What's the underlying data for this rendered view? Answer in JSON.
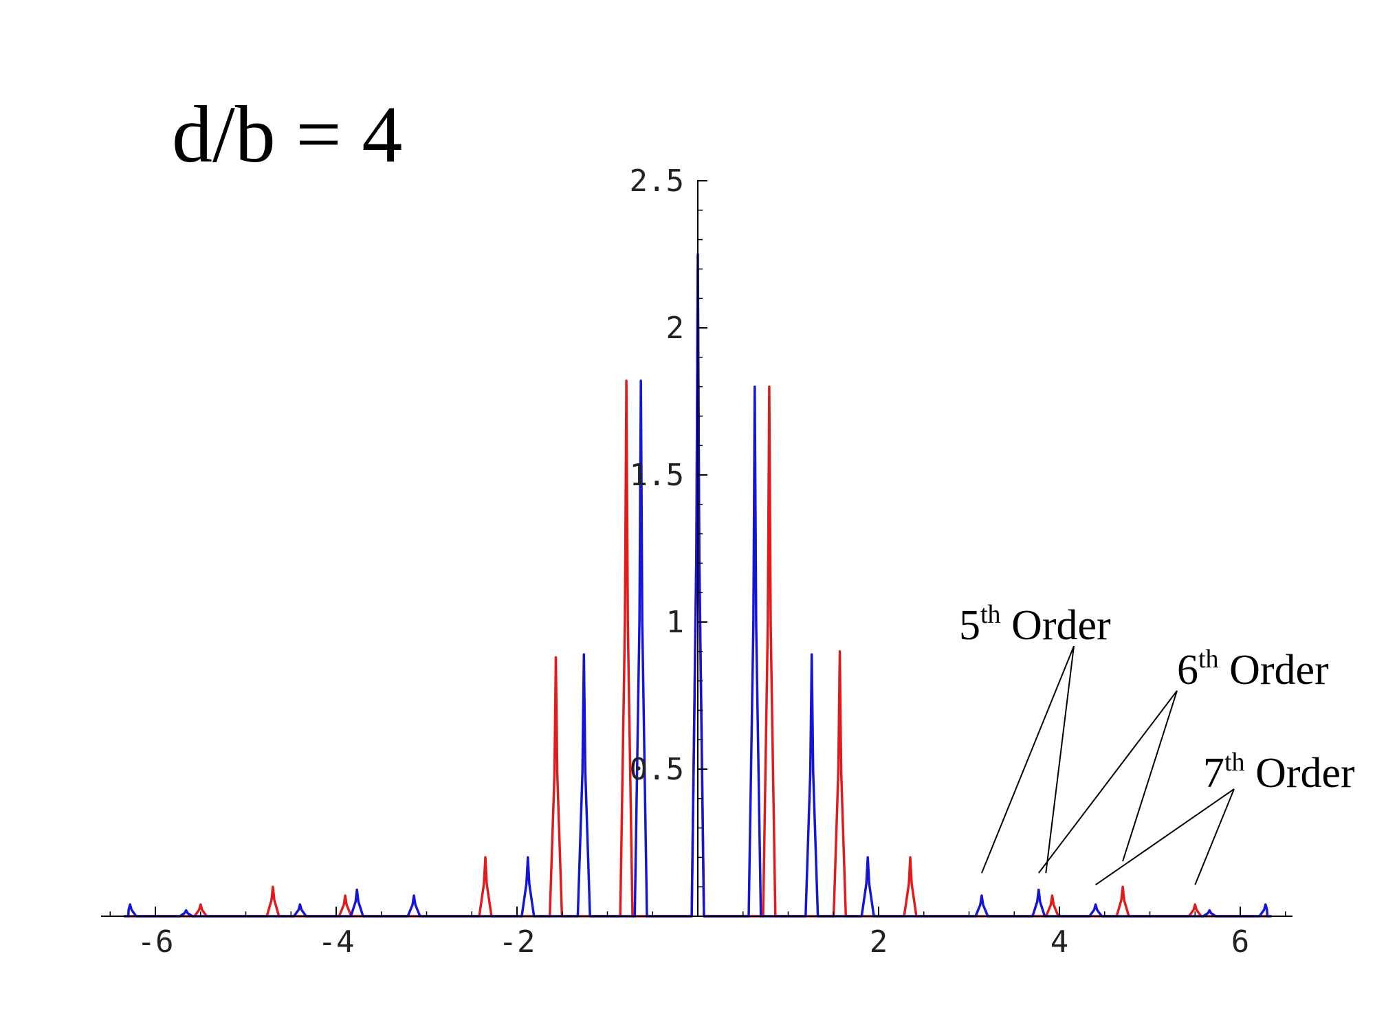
{
  "chart_data": {
    "type": "line",
    "title": "d/b = 4",
    "xlim": [
      -6.6,
      6.6
    ],
    "ylim": [
      0,
      2.5
    ],
    "x_ticks": [
      -6,
      -4,
      -2,
      2,
      4,
      6
    ],
    "x_tick_labels": [
      "-6",
      "-4",
      "-2",
      "2",
      "4",
      "6"
    ],
    "y_ticks": [
      0.5,
      1,
      1.5,
      2,
      2.5
    ],
    "y_tick_labels": [
      "0.5",
      "1",
      "1.5",
      "2",
      "2.5"
    ],
    "grid": false,
    "series": [
      {
        "color": "#e01b1b",
        "peaks": [
          {
            "x": -5.5,
            "y": 0.04
          },
          {
            "x": -4.7,
            "y": 0.1
          },
          {
            "x": -3.9,
            "y": 0.07
          },
          {
            "x": -2.35,
            "y": 0.2
          },
          {
            "x": -1.57,
            "y": 0.88
          },
          {
            "x": -0.79,
            "y": 1.82
          },
          {
            "x": 0.0,
            "y": 2.2
          },
          {
            "x": 0.79,
            "y": 1.8
          },
          {
            "x": 1.57,
            "y": 0.9
          },
          {
            "x": 2.35,
            "y": 0.2
          },
          {
            "x": 3.92,
            "y": 0.07
          },
          {
            "x": 4.7,
            "y": 0.1
          },
          {
            "x": 5.5,
            "y": 0.04
          }
        ]
      },
      {
        "color": "#1515d6",
        "peaks": [
          {
            "x": -6.28,
            "y": 0.04
          },
          {
            "x": -5.66,
            "y": 0.02
          },
          {
            "x": -4.4,
            "y": 0.04
          },
          {
            "x": -3.77,
            "y": 0.09
          },
          {
            "x": -3.14,
            "y": 0.07
          },
          {
            "x": -1.88,
            "y": 0.2
          },
          {
            "x": -1.26,
            "y": 0.89
          },
          {
            "x": -0.63,
            "y": 1.82
          },
          {
            "x": 0.0,
            "y": 2.25
          },
          {
            "x": 0.63,
            "y": 1.8
          },
          {
            "x": 1.26,
            "y": 0.89
          },
          {
            "x": 1.88,
            "y": 0.2
          },
          {
            "x": 3.14,
            "y": 0.07
          },
          {
            "x": 3.77,
            "y": 0.09
          },
          {
            "x": 4.4,
            "y": 0.04
          },
          {
            "x": 5.66,
            "y": 0.02
          },
          {
            "x": 6.28,
            "y": 0.04
          }
        ]
      }
    ],
    "annotations": [
      {
        "number": "5",
        "sup": "th",
        "label": " Order",
        "targets": [
          [
            3.14,
            0.1
          ],
          [
            3.85,
            0.1
          ]
        ]
      },
      {
        "number": "6",
        "sup": "th",
        "label": " Order",
        "targets": [
          [
            3.77,
            0.1
          ],
          [
            4.7,
            0.14
          ]
        ]
      },
      {
        "number": "7",
        "sup": "th",
        "label": " Order",
        "targets": [
          [
            4.4,
            0.06
          ],
          [
            5.5,
            0.06
          ]
        ]
      }
    ]
  }
}
